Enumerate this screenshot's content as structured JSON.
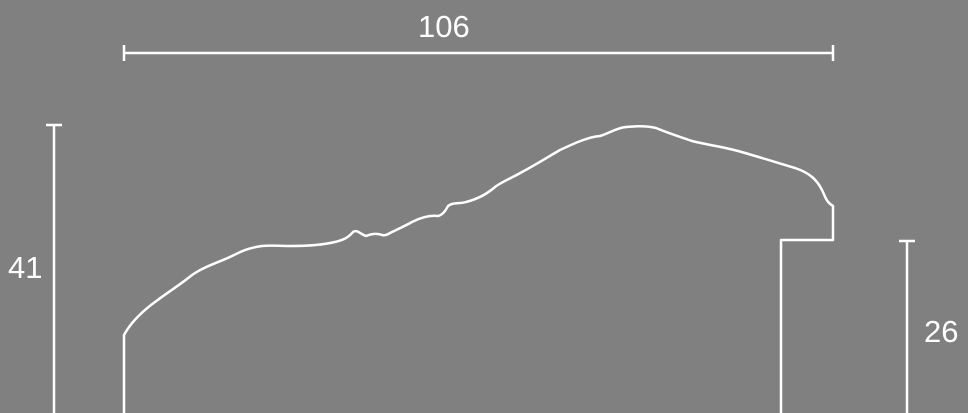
{
  "drawing": {
    "background_color": "#808080",
    "line_color": "#ffffff"
  },
  "dimensions": {
    "width": "106",
    "height": "41",
    "rebate_height": "26"
  }
}
